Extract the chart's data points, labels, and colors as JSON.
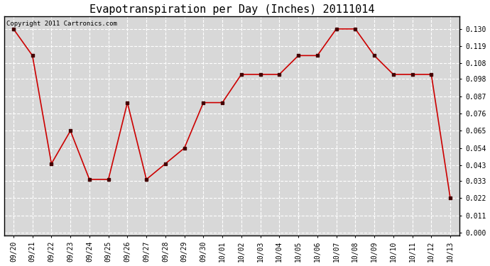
{
  "title": "Evapotranspiration per Day (Inches) 20111014",
  "copyright_text": "Copyright 2011 Cartronics.com",
  "x_labels": [
    "09/20",
    "09/21",
    "09/22",
    "09/23",
    "09/24",
    "09/25",
    "09/26",
    "09/27",
    "09/28",
    "09/29",
    "09/30",
    "10/01",
    "10/02",
    "10/03",
    "10/04",
    "10/05",
    "10/06",
    "10/07",
    "10/08",
    "10/09",
    "10/10",
    "10/11",
    "10/12",
    "10/13"
  ],
  "y_values": [
    0.13,
    0.113,
    0.044,
    0.065,
    0.034,
    0.034,
    0.083,
    0.034,
    0.044,
    0.054,
    0.083,
    0.083,
    0.101,
    0.101,
    0.101,
    0.113,
    0.113,
    0.13,
    0.13,
    0.113,
    0.101,
    0.101,
    0.101,
    0.022
  ],
  "line_color": "#cc0000",
  "marker": "s",
  "marker_size": 2.5,
  "marker_color": "#440000",
  "background_color": "#ffffff",
  "plot_bg_color": "#d8d8d8",
  "grid_color": "#ffffff",
  "y_tick_values": [
    0.0,
    0.011,
    0.022,
    0.033,
    0.043,
    0.054,
    0.065,
    0.076,
    0.087,
    0.098,
    0.108,
    0.119,
    0.13
  ],
  "ylim": [
    -0.002,
    0.138
  ],
  "title_fontsize": 11,
  "tick_fontsize": 7,
  "copyright_fontsize": 6.5
}
